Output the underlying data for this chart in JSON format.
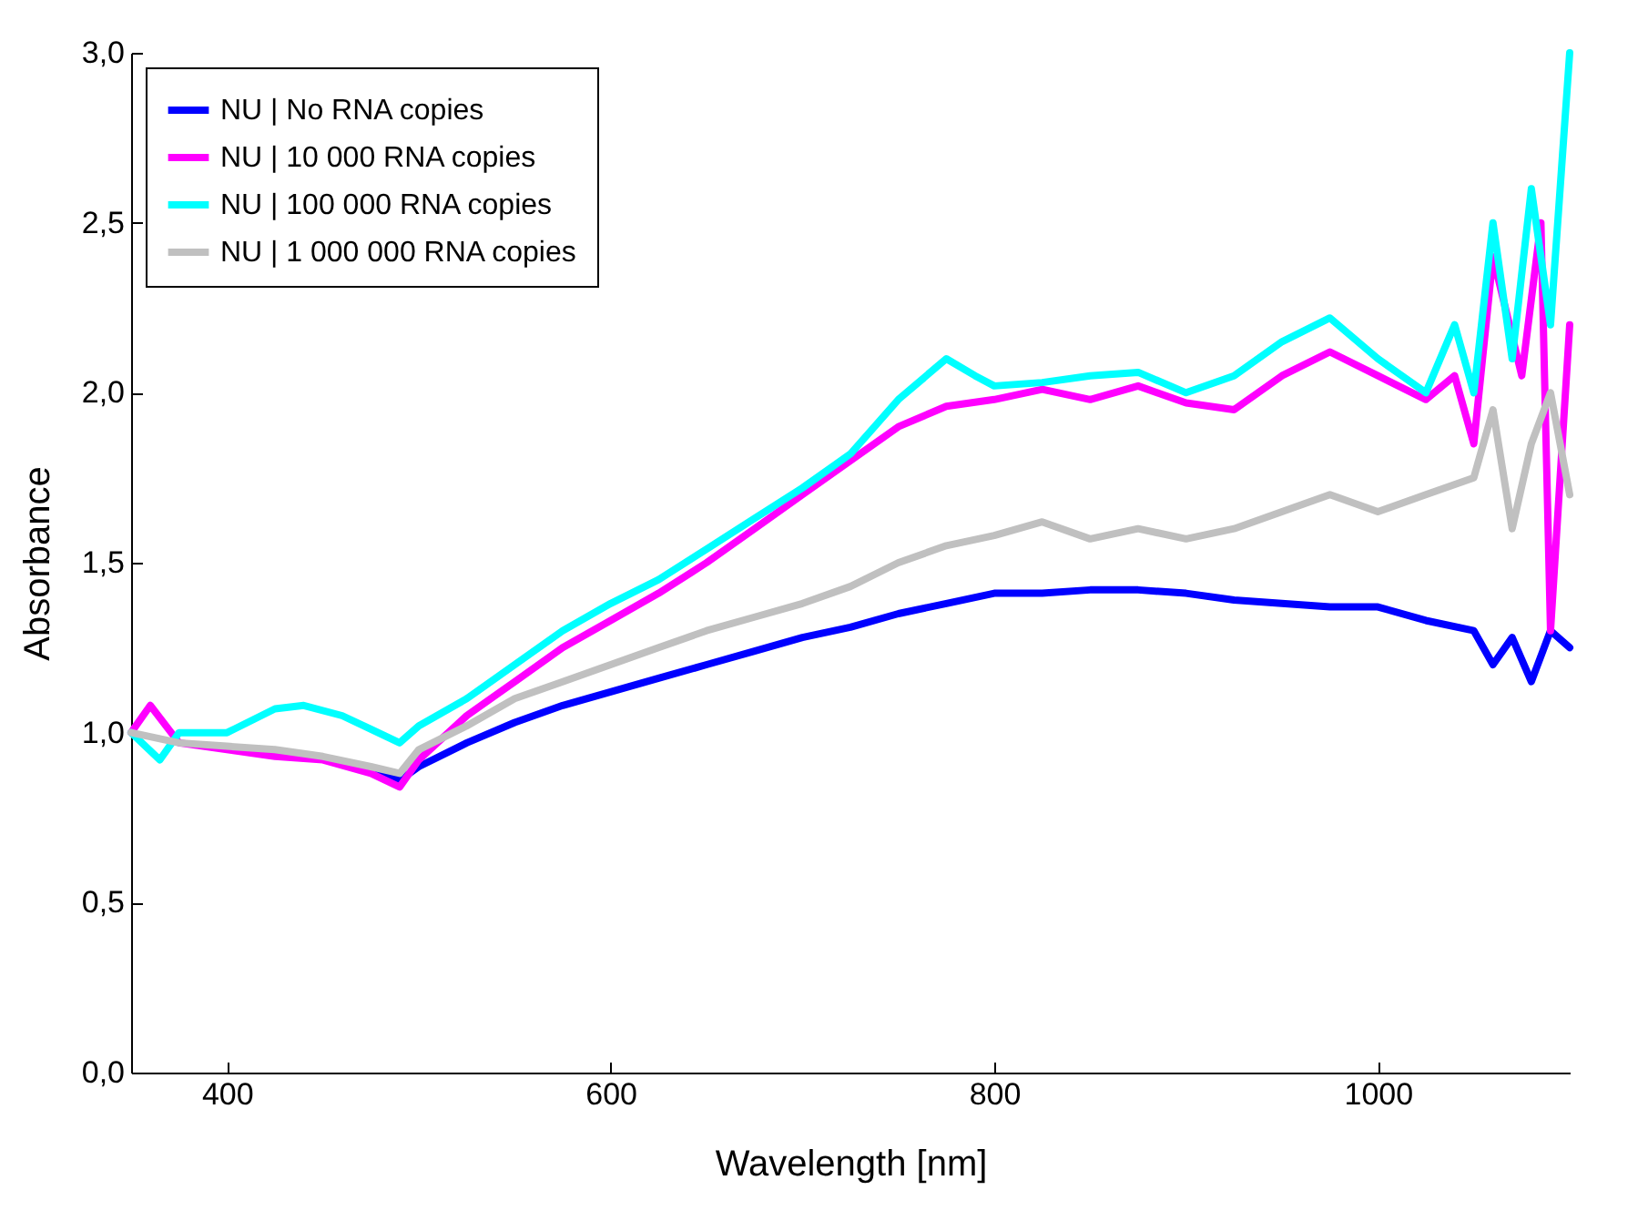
{
  "chart_data": {
    "type": "line",
    "xlabel": "Wavelength [nm]",
    "ylabel": "Absorbance",
    "xlim": [
      350,
      1100
    ],
    "xticks": [
      400,
      600,
      800,
      1000
    ],
    "ylim": [
      0,
      3
    ],
    "yticks": [
      {
        "value": 0,
        "label": "0,0"
      },
      {
        "value": 0.5,
        "label": "0,5"
      },
      {
        "value": 1,
        "label": "1,0"
      },
      {
        "value": 1.5,
        "label": "1,5"
      },
      {
        "value": 2,
        "label": "2,0"
      },
      {
        "value": 2.5,
        "label": "2,5"
      },
      {
        "value": 3,
        "label": "3,0"
      }
    ],
    "grid": false,
    "legend": "top left",
    "line_style": "solid",
    "marker": "none",
    "series": [
      {
        "name": "NU | No RNA copies",
        "color": "#0000ff",
        "x": [
          475,
          490,
          500,
          525,
          550,
          575,
          600,
          625,
          650,
          675,
          700,
          725,
          750,
          775,
          800,
          825,
          850,
          875,
          900,
          925,
          950,
          975,
          1000,
          1025,
          1050,
          1060,
          1070,
          1080,
          1090,
          1100
        ],
        "values": [
          0.89,
          0.86,
          0.9,
          0.97,
          1.03,
          1.08,
          1.12,
          1.16,
          1.2,
          1.24,
          1.28,
          1.31,
          1.35,
          1.38,
          1.41,
          1.41,
          1.42,
          1.42,
          1.41,
          1.39,
          1.38,
          1.37,
          1.37,
          1.33,
          1.3,
          1.2,
          1.28,
          1.15,
          1.3,
          1.25
        ]
      },
      {
        "name": "NU | 10 000 RNA copies",
        "color": "#ff00ff",
        "x": [
          350,
          360,
          375,
          400,
          425,
          450,
          475,
          490,
          500,
          525,
          550,
          575,
          600,
          625,
          650,
          675,
          700,
          725,
          750,
          775,
          800,
          825,
          850,
          875,
          900,
          925,
          950,
          975,
          1000,
          1025,
          1040,
          1050,
          1060,
          1075,
          1085,
          1090,
          1100
        ],
        "values": [
          1.0,
          1.08,
          0.97,
          0.95,
          0.93,
          0.92,
          0.88,
          0.84,
          0.92,
          1.05,
          1.15,
          1.25,
          1.33,
          1.41,
          1.5,
          1.6,
          1.7,
          1.8,
          1.9,
          1.96,
          1.98,
          2.01,
          1.98,
          2.02,
          1.97,
          1.95,
          2.05,
          2.12,
          2.05,
          1.98,
          2.05,
          1.85,
          2.4,
          2.05,
          2.5,
          1.3,
          2.2
        ]
      },
      {
        "name": "NU | 100 000 RNA copies",
        "color": "#00ffff",
        "x": [
          350,
          365,
          375,
          400,
          425,
          440,
          460,
          475,
          490,
          500,
          525,
          550,
          575,
          600,
          625,
          650,
          675,
          700,
          725,
          750,
          775,
          790,
          800,
          825,
          850,
          875,
          900,
          925,
          950,
          975,
          1000,
          1025,
          1040,
          1050,
          1060,
          1070,
          1080,
          1090,
          1100
        ],
        "values": [
          1.0,
          0.92,
          1.0,
          1.0,
          1.07,
          1.08,
          1.05,
          1.01,
          0.97,
          1.02,
          1.1,
          1.2,
          1.3,
          1.38,
          1.45,
          1.54,
          1.63,
          1.72,
          1.82,
          1.98,
          2.1,
          2.05,
          2.02,
          2.03,
          2.05,
          2.06,
          2.0,
          2.05,
          2.15,
          2.22,
          2.1,
          2.0,
          2.2,
          2.0,
          2.5,
          2.1,
          2.6,
          2.2,
          3.0
        ]
      },
      {
        "name": "NU | 1 000 000 RNA copies",
        "color": "#c0c0c0",
        "x": [
          350,
          375,
          400,
          425,
          450,
          475,
          490,
          500,
          525,
          550,
          575,
          600,
          625,
          650,
          675,
          700,
          725,
          750,
          775,
          800,
          825,
          850,
          875,
          900,
          925,
          950,
          975,
          1000,
          1025,
          1050,
          1060,
          1070,
          1080,
          1090,
          1100
        ],
        "values": [
          1.0,
          0.97,
          0.96,
          0.95,
          0.93,
          0.9,
          0.88,
          0.95,
          1.02,
          1.1,
          1.15,
          1.2,
          1.25,
          1.3,
          1.34,
          1.38,
          1.43,
          1.5,
          1.55,
          1.58,
          1.62,
          1.57,
          1.6,
          1.57,
          1.6,
          1.65,
          1.7,
          1.65,
          1.7,
          1.75,
          1.95,
          1.6,
          1.85,
          2.0,
          1.7
        ]
      }
    ]
  }
}
